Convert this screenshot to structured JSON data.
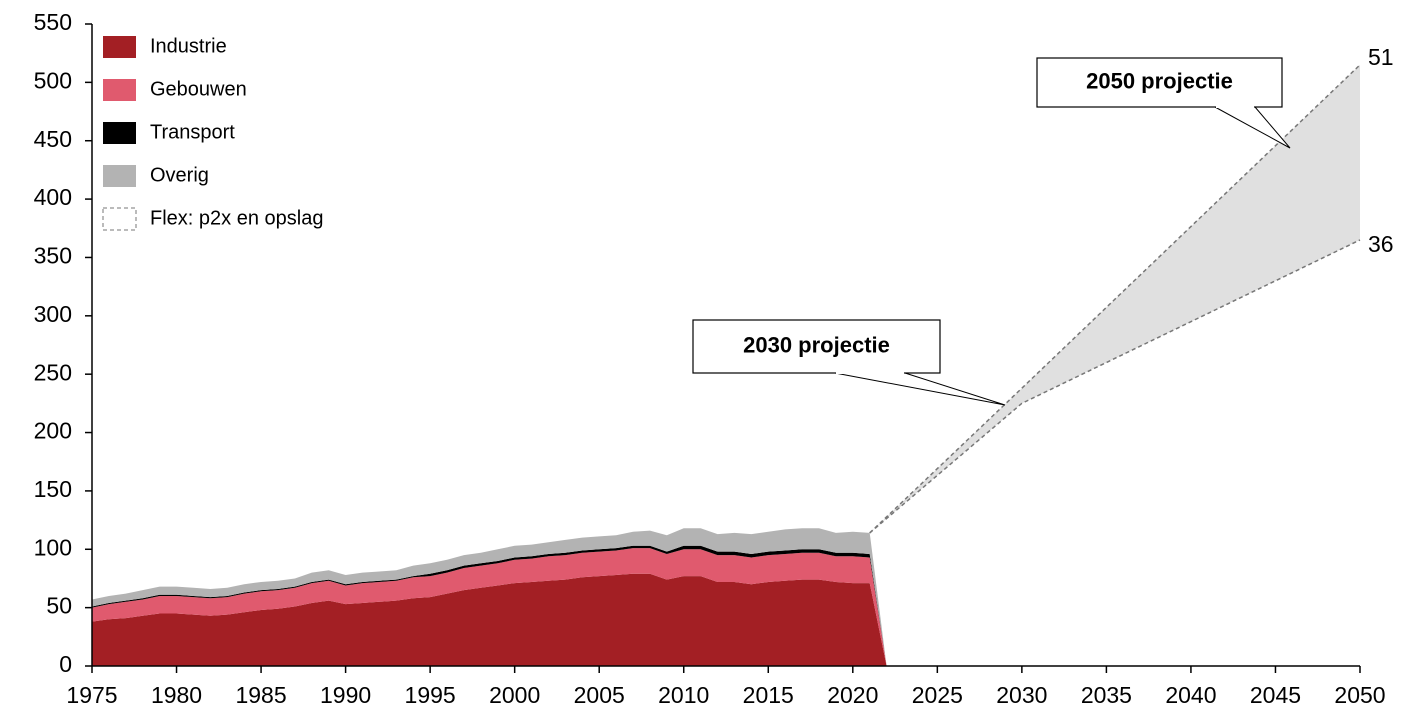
{
  "chart_data": {
    "type": "stacked_area",
    "x": [
      1975,
      1976,
      1977,
      1978,
      1979,
      1980,
      1981,
      1982,
      1983,
      1984,
      1985,
      1986,
      1987,
      1988,
      1989,
      1990,
      1991,
      1992,
      1993,
      1994,
      1995,
      1996,
      1997,
      1998,
      1999,
      2000,
      2001,
      2002,
      2003,
      2004,
      2005,
      2006,
      2007,
      2008,
      2009,
      2010,
      2011,
      2012,
      2013,
      2014,
      2015,
      2016,
      2017,
      2018,
      2019,
      2020,
      2021,
      2022
    ],
    "series": [
      {
        "name": "Industrie",
        "color": "#a31f24",
        "values": [
          38,
          40,
          41,
          43,
          45,
          45,
          44,
          43,
          44,
          46,
          48,
          49,
          51,
          54,
          56,
          53,
          54,
          55,
          56,
          58,
          59,
          62,
          65,
          67,
          69,
          71,
          72,
          73,
          74,
          76,
          77,
          78,
          79,
          79,
          74,
          77,
          77,
          72,
          72,
          70,
          72,
          73,
          74,
          74,
          72,
          71,
          71,
          0
        ]
      },
      {
        "name": "Gebouwen",
        "color": "#e05a6e",
        "values": [
          12,
          13,
          14,
          14,
          15,
          15,
          15,
          15,
          15,
          16,
          16,
          16,
          16,
          17,
          17,
          16,
          17,
          17,
          17,
          18,
          18,
          18,
          19,
          19,
          19,
          20,
          20,
          21,
          21,
          21,
          21,
          21,
          22,
          22,
          22,
          23,
          23,
          23,
          23,
          23,
          23,
          23,
          23,
          23,
          22,
          23,
          22,
          0
        ]
      },
      {
        "name": "Transport",
        "color": "#000000",
        "values": [
          1,
          1,
          1,
          1,
          1,
          1,
          1,
          1,
          1,
          1,
          1,
          1,
          1,
          1,
          1,
          1,
          1,
          1,
          1,
          1,
          2,
          2,
          2,
          2,
          2,
          2,
          2,
          2,
          2,
          2,
          2,
          2,
          2,
          2,
          2,
          3,
          3,
          3,
          3,
          3,
          3,
          3,
          3,
          3,
          3,
          3,
          3,
          0
        ]
      },
      {
        "name": "Overig",
        "color": "#b3b3b3",
        "values": [
          6,
          6,
          6,
          7,
          7,
          7,
          7,
          7,
          7,
          7,
          7,
          7,
          7,
          8,
          8,
          8,
          8,
          8,
          8,
          9,
          9,
          9,
          9,
          9,
          10,
          10,
          10,
          10,
          11,
          11,
          11,
          11,
          12,
          13,
          14,
          15,
          15,
          15,
          16,
          17,
          17,
          18,
          18,
          18,
          17,
          18,
          18,
          0
        ]
      }
    ],
    "flex": {
      "name": "Flex: p2x en opslag",
      "color": "#e0e0e0",
      "edge_color": "#777777",
      "x": [
        2021,
        2030,
        2050
      ],
      "upper": [
        114,
        238,
        515
      ],
      "lower": [
        114,
        225,
        365
      ]
    },
    "annotations": [
      "2030 projectie",
      "2050 projectie"
    ],
    "end_labels": [
      "51",
      "36"
    ],
    "xlim": [
      1975,
      2050
    ],
    "xticks": [
      1975,
      1980,
      1985,
      1990,
      1995,
      2000,
      2005,
      2010,
      2015,
      2020,
      2025,
      2030,
      2035,
      2040,
      2045,
      2050
    ],
    "ylim": [
      0,
      550
    ],
    "yticks": [
      0,
      50,
      100,
      150,
      200,
      250,
      300,
      350,
      400,
      450,
      500,
      550
    ],
    "legend": "upper left",
    "grid": false
  }
}
